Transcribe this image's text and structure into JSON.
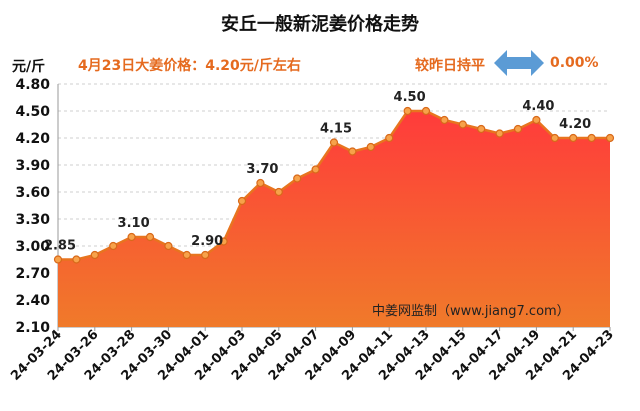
{
  "header": {
    "title": "安丘一般新泥姜价格走势",
    "unit": "元/斤",
    "subtitle": "4月23日大姜价格：4.20元/斤左右",
    "compare": "较昨日持平",
    "change": "0.00%",
    "watermark": "中姜网监制（www.jiang7.com）"
  },
  "colors": {
    "line": "#e8741f",
    "fill_top": "#ff3b3b",
    "fill_bottom": "#f07a2a",
    "arrow": "#5b9bd5"
  },
  "chart_data": {
    "type": "area",
    "title": "安丘一般新泥姜价格走势",
    "ylabel": "元/斤",
    "ylim": [
      2.1,
      4.8
    ],
    "yticks": [
      "4.80",
      "4.50",
      "4.20",
      "3.90",
      "3.60",
      "3.30",
      "3.00",
      "2.70",
      "2.40",
      "2.10"
    ],
    "grid": true,
    "x": [
      "24-03-24",
      "24-03-25",
      "24-03-26",
      "24-03-27",
      "24-03-28",
      "24-03-29",
      "24-03-30",
      "24-03-31",
      "24-04-01",
      "24-04-02",
      "24-04-03",
      "24-04-04",
      "24-04-05",
      "24-04-06",
      "24-04-07",
      "24-04-08",
      "24-04-09",
      "24-04-10",
      "24-04-11",
      "24-04-12",
      "24-04-13",
      "24-04-14",
      "24-04-15",
      "24-04-16",
      "24-04-17",
      "24-04-18",
      "24-04-19",
      "24-04-20",
      "24-04-21",
      "24-04-22",
      "24-04-23"
    ],
    "xtick_labels": [
      "24-03-24",
      "24-03-26",
      "24-03-28",
      "24-03-30",
      "24-04-01",
      "24-04-03",
      "24-04-05",
      "24-04-07",
      "24-04-09",
      "24-04-11",
      "24-04-13",
      "24-04-15",
      "24-04-17",
      "24-04-19",
      "24-04-21",
      "24-04-23"
    ],
    "values": [
      2.85,
      2.85,
      2.9,
      3.0,
      3.1,
      3.1,
      3.0,
      2.9,
      2.9,
      3.05,
      3.5,
      3.7,
      3.6,
      3.75,
      3.85,
      4.15,
      4.05,
      4.1,
      4.2,
      4.5,
      4.5,
      4.4,
      4.35,
      4.3,
      4.25,
      4.3,
      4.4,
      4.2,
      4.2,
      4.2,
      4.2
    ],
    "data_labels": [
      {
        "index": 0,
        "text": "2.85"
      },
      {
        "index": 4,
        "text": "3.10"
      },
      {
        "index": 8,
        "text": "2.90"
      },
      {
        "index": 11,
        "text": "3.70"
      },
      {
        "index": 15,
        "text": "4.15"
      },
      {
        "index": 19,
        "text": "4.50"
      },
      {
        "index": 26,
        "text": "4.40"
      },
      {
        "index": 28,
        "text": "4.20"
      }
    ]
  }
}
